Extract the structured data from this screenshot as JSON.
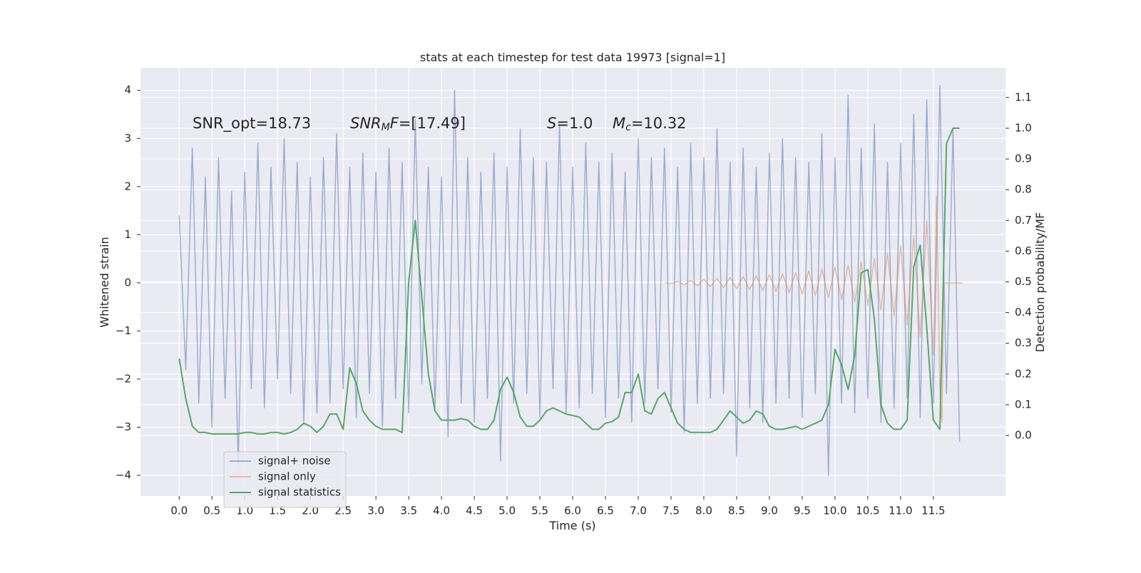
{
  "chart_data": {
    "type": "line",
    "title": "stats at each timestep for test data 19973 [signal=1]",
    "xlabel": "Time (s)",
    "ylabel": "Whitened strain",
    "y2label": "Detection probability/MF",
    "annotations": [
      [
        "SNR_opt=18.73"
      ],
      [
        "SNR",
        "M",
        "F",
        "=[17.49]"
      ],
      [
        "S",
        "=1.0"
      ],
      [
        "M",
        "c",
        "=10.32"
      ]
    ],
    "xlim": [
      -0.59,
      12.6
    ],
    "ylim": [
      -4.43,
      4.47
    ],
    "y2lim": [
      -0.197,
      1.197
    ],
    "xticks": [
      {
        "value": 0,
        "label": "0.0"
      },
      0.5,
      {
        "value": 1,
        "label": "1.0"
      },
      1.5,
      {
        "value": 2,
        "label": "2.0"
      },
      2.5,
      {
        "value": 3,
        "label": "3.0"
      },
      3.5,
      {
        "value": 4,
        "label": "4.0"
      },
      4.5,
      {
        "value": 5,
        "label": "5.0"
      },
      5.5,
      {
        "value": 6,
        "label": "6.0"
      },
      6.5,
      {
        "value": 7,
        "label": "7.0"
      },
      7.5,
      {
        "value": 8,
        "label": "8.0"
      },
      8.5,
      {
        "value": 9,
        "label": "9.0"
      },
      9.5,
      {
        "value": 10,
        "label": "10.0"
      },
      10.5,
      {
        "value": 11,
        "label": "11.0"
      },
      11.5
    ],
    "yticks": [
      {
        "value": -4,
        "label": "−4"
      },
      {
        "value": -3,
        "label": "−3"
      },
      {
        "value": -2,
        "label": "−2"
      },
      {
        "value": -1,
        "label": "−1"
      },
      0,
      1,
      2,
      3,
      4
    ],
    "y2ticks": [
      {
        "value": 0,
        "label": "0.0"
      },
      0.1,
      0.2,
      0.3,
      0.4,
      0.5,
      0.6,
      0.7,
      0.8,
      0.9,
      {
        "value": 1,
        "label": "1.0"
      },
      1.1
    ],
    "grid": true,
    "legend": "lower left",
    "series": [
      {
        "name": "signal+ noise",
        "color": "#4c72b0",
        "x": [
          0.0,
          0.1,
          0.2,
          0.3,
          0.4,
          0.5,
          0.6,
          0.7,
          0.8,
          0.9,
          1.0,
          1.1,
          1.2,
          1.3,
          1.4,
          1.5,
          1.6,
          1.7,
          1.8,
          1.9,
          2.0,
          2.1,
          2.2,
          2.3,
          2.4,
          2.5,
          2.6,
          2.7,
          2.8,
          2.9,
          3.0,
          3.1,
          3.2,
          3.3,
          3.4,
          3.5,
          3.6,
          3.7,
          3.8,
          3.9,
          4.0,
          4.1,
          4.2,
          4.3,
          4.4,
          4.5,
          4.6,
          4.7,
          4.8,
          4.9,
          5.0,
          5.1,
          5.2,
          5.3,
          5.4,
          5.5,
          5.6,
          5.7,
          5.8,
          5.9,
          6.0,
          6.1,
          6.2,
          6.3,
          6.4,
          6.5,
          6.6,
          6.7,
          6.8,
          6.9,
          7.0,
          7.1,
          7.2,
          7.3,
          7.4,
          7.5,
          7.6,
          7.7,
          7.8,
          7.9,
          8.0,
          8.1,
          8.2,
          8.3,
          8.4,
          8.5,
          8.6,
          8.7,
          8.8,
          8.9,
          9.0,
          9.1,
          9.2,
          9.3,
          9.4,
          9.5,
          9.6,
          9.7,
          9.8,
          9.9,
          10.0,
          10.1,
          10.2,
          10.3,
          10.4,
          10.5,
          10.6,
          10.7,
          10.8,
          10.9,
          11.0,
          11.1,
          11.2,
          11.3,
          11.4,
          11.5,
          11.6,
          11.7,
          11.8,
          11.9
        ],
        "values": [
          1.4,
          -1.8,
          2.8,
          -2.5,
          2.2,
          -3.0,
          2.6,
          -2.4,
          1.9,
          -3.8,
          2.3,
          -2.2,
          2.9,
          -2.6,
          2.4,
          -2.0,
          3.0,
          -2.3,
          2.5,
          -2.9,
          2.2,
          -2.7,
          2.6,
          -2.5,
          3.1,
          -2.2,
          2.4,
          -2.8,
          2.7,
          -2.3,
          2.3,
          -3.0,
          2.8,
          -2.4,
          2.5,
          -2.7,
          3.4,
          -2.1,
          2.4,
          -2.6,
          2.2,
          -3.2,
          4.0,
          -2.5,
          2.6,
          -2.9,
          2.3,
          -2.4,
          2.7,
          -3.7,
          2.4,
          -2.5,
          3.2,
          -2.3,
          2.6,
          -2.8,
          2.5,
          -2.2,
          3.3,
          -2.7,
          2.4,
          -2.6,
          2.9,
          -2.3,
          2.5,
          -2.8,
          2.7,
          -2.4,
          2.3,
          -2.9,
          3.0,
          -2.5,
          2.6,
          -2.2,
          2.8,
          -2.7,
          2.4,
          -3.1,
          2.9,
          -2.5,
          2.6,
          -2.4,
          3.2,
          -2.3,
          2.5,
          -3.6,
          2.8,
          -2.6,
          2.4,
          -2.9,
          2.7,
          -2.5,
          3.0,
          -2.4,
          2.6,
          -2.8,
          2.5,
          -2.3,
          3.1,
          -4.0,
          2.6,
          -2.5,
          3.9,
          -2.7,
          2.8,
          -2.4,
          3.3,
          -2.9,
          2.5,
          -2.6,
          2.9,
          -2.4,
          3.5,
          -2.8,
          3.8,
          -2.5,
          4.1,
          -2.3,
          3.2,
          -3.3
        ]
      },
      {
        "name": "signal only",
        "color": "#dd8452",
        "x": [
          7.4,
          7.5,
          7.6,
          7.7,
          7.8,
          7.9,
          8.0,
          8.1,
          8.2,
          8.3,
          8.4,
          8.5,
          8.6,
          8.7,
          8.8,
          8.9,
          9.0,
          9.1,
          9.2,
          9.3,
          9.4,
          9.5,
          9.6,
          9.7,
          9.8,
          9.9,
          10.0,
          10.1,
          10.2,
          10.3,
          10.4,
          10.5,
          10.6,
          10.7,
          10.8,
          10.9,
          11.0,
          11.1,
          11.2,
          11.3,
          11.4,
          11.5,
          11.55,
          11.6,
          11.63,
          11.66,
          11.95
        ],
        "values": [
          0.01,
          -0.02,
          0.03,
          -0.04,
          0.05,
          -0.06,
          0.07,
          -0.08,
          0.09,
          -0.1,
          0.11,
          -0.12,
          0.13,
          -0.14,
          0.15,
          -0.16,
          0.17,
          -0.18,
          0.19,
          -0.2,
          0.21,
          -0.23,
          0.25,
          -0.27,
          0.29,
          -0.31,
          0.33,
          -0.35,
          0.37,
          -0.4,
          0.43,
          -0.47,
          0.51,
          -0.56,
          0.62,
          -0.69,
          0.77,
          -0.87,
          0.99,
          -1.13,
          1.3,
          -1.5,
          1.8,
          -2.2,
          -2.9,
          0,
          0
        ]
      },
      {
        "name": "signal statistics",
        "color": "#55a868",
        "axis": "y2",
        "x": [
          0.0,
          0.1,
          0.2,
          0.3,
          0.4,
          0.5,
          0.6,
          0.7,
          0.8,
          0.9,
          1.0,
          1.1,
          1.2,
          1.3,
          1.4,
          1.5,
          1.6,
          1.7,
          1.8,
          1.9,
          2.0,
          2.1,
          2.2,
          2.3,
          2.4,
          2.5,
          2.6,
          2.7,
          2.8,
          2.9,
          3.0,
          3.1,
          3.2,
          3.3,
          3.4,
          3.5,
          3.6,
          3.7,
          3.8,
          3.9,
          4.0,
          4.1,
          4.2,
          4.3,
          4.4,
          4.5,
          4.6,
          4.7,
          4.8,
          4.9,
          5.0,
          5.1,
          5.2,
          5.3,
          5.4,
          5.5,
          5.6,
          5.7,
          5.8,
          5.9,
          6.0,
          6.1,
          6.2,
          6.3,
          6.4,
          6.5,
          6.6,
          6.7,
          6.8,
          6.9,
          7.0,
          7.1,
          7.2,
          7.3,
          7.4,
          7.5,
          7.6,
          7.7,
          7.8,
          7.9,
          8.0,
          8.1,
          8.2,
          8.3,
          8.4,
          8.5,
          8.6,
          8.7,
          8.8,
          8.9,
          9.0,
          9.1,
          9.2,
          9.3,
          9.4,
          9.5,
          9.6,
          9.7,
          9.8,
          9.9,
          10.0,
          10.1,
          10.2,
          10.3,
          10.4,
          10.5,
          10.6,
          10.7,
          10.8,
          10.9,
          11.0,
          11.1,
          11.2,
          11.3,
          11.4,
          11.5,
          11.6,
          11.7,
          11.8,
          11.9
        ],
        "values": [
          0.25,
          0.12,
          0.03,
          0.01,
          0.01,
          0.005,
          0.005,
          0.005,
          0.005,
          0.005,
          0.01,
          0.01,
          0.005,
          0.005,
          0.01,
          0.01,
          0.005,
          0.01,
          0.02,
          0.04,
          0.03,
          0.01,
          0.03,
          0.07,
          0.07,
          0.02,
          0.22,
          0.17,
          0.08,
          0.05,
          0.03,
          0.02,
          0.02,
          0.02,
          0.01,
          0.5,
          0.7,
          0.45,
          0.2,
          0.08,
          0.05,
          0.05,
          0.05,
          0.055,
          0.05,
          0.03,
          0.02,
          0.02,
          0.05,
          0.15,
          0.19,
          0.14,
          0.06,
          0.03,
          0.03,
          0.05,
          0.08,
          0.09,
          0.08,
          0.07,
          0.065,
          0.06,
          0.04,
          0.02,
          0.02,
          0.04,
          0.045,
          0.06,
          0.14,
          0.14,
          0.2,
          0.08,
          0.07,
          0.12,
          0.14,
          0.09,
          0.04,
          0.02,
          0.01,
          0.01,
          0.01,
          0.01,
          0.02,
          0.05,
          0.08,
          0.06,
          0.04,
          0.05,
          0.08,
          0.07,
          0.03,
          0.02,
          0.02,
          0.025,
          0.03,
          0.02,
          0.03,
          0.04,
          0.05,
          0.1,
          0.28,
          0.23,
          0.15,
          0.26,
          0.53,
          0.54,
          0.38,
          0.1,
          0.04,
          0.02,
          0.02,
          0.05,
          0.55,
          0.62,
          0.35,
          0.05,
          0.02,
          0.95,
          1.0,
          1.0
        ]
      }
    ]
  }
}
